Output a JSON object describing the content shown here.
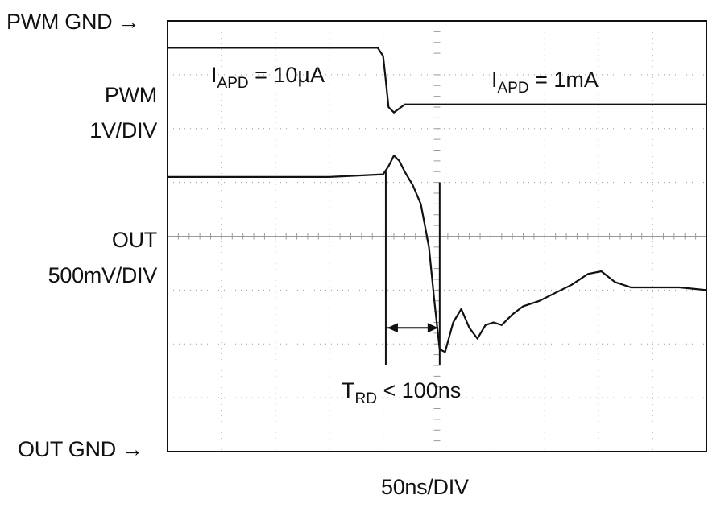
{
  "chart_data": {
    "type": "line",
    "title": "",
    "grid": true,
    "x_axis": {
      "label": "50ns/DIV",
      "divisions": 10,
      "unit_per_div_ns": 50
    },
    "y_axis": {
      "divisions": 8
    },
    "left_labels": {
      "pwm_gnd": "PWM GND",
      "pwm_scale_line1": "PWM",
      "pwm_scale_line2": "1V/DIV",
      "out_scale_line1": "OUT",
      "out_scale_line2": "500mV/DIV",
      "out_gnd": "OUT GND",
      "arrow": "→"
    },
    "annotations": {
      "iapd_before": {
        "main": "I",
        "sub": "APD",
        "rest": " = 10µA"
      },
      "iapd_after": {
        "main": "I",
        "sub": "APD",
        "rest": " = 1mA"
      },
      "trd": {
        "main": "T",
        "sub": "RD",
        "rest": " < 100ns"
      }
    },
    "series": [
      {
        "name": "PWM",
        "x_div": [
          0,
          3.9,
          4.0,
          4.05,
          4.1,
          4.2,
          4.4,
          5.0,
          7.0,
          10.0
        ],
        "y_div": [
          7.5,
          7.5,
          7.35,
          6.9,
          6.4,
          6.3,
          6.45,
          6.45,
          6.45,
          6.45
        ]
      },
      {
        "name": "OUT",
        "x_div": [
          0,
          2.0,
          3.0,
          4.0,
          4.1,
          4.2,
          4.3,
          4.4,
          4.55,
          4.7,
          4.85,
          4.95,
          5.05,
          5.15,
          5.3,
          5.45,
          5.6,
          5.75,
          5.9,
          6.05,
          6.2,
          6.4,
          6.6,
          6.9,
          7.2,
          7.5,
          7.8,
          8.05,
          8.3,
          8.6,
          9.0,
          9.5,
          10.0
        ],
        "y_div": [
          5.1,
          5.1,
          5.1,
          5.15,
          5.3,
          5.5,
          5.4,
          5.2,
          4.95,
          4.6,
          3.8,
          2.8,
          1.9,
          1.85,
          2.4,
          2.65,
          2.3,
          2.1,
          2.35,
          2.4,
          2.35,
          2.55,
          2.7,
          2.8,
          2.95,
          3.1,
          3.3,
          3.35,
          3.15,
          3.05,
          3.05,
          3.05,
          3.0
        ]
      }
    ],
    "markers": {
      "t_start_div": 4.05,
      "t_end_div": 5.05
    }
  },
  "colors": {
    "trace": "#111111",
    "grid": "#9a9a9a",
    "frame": "#111111"
  }
}
